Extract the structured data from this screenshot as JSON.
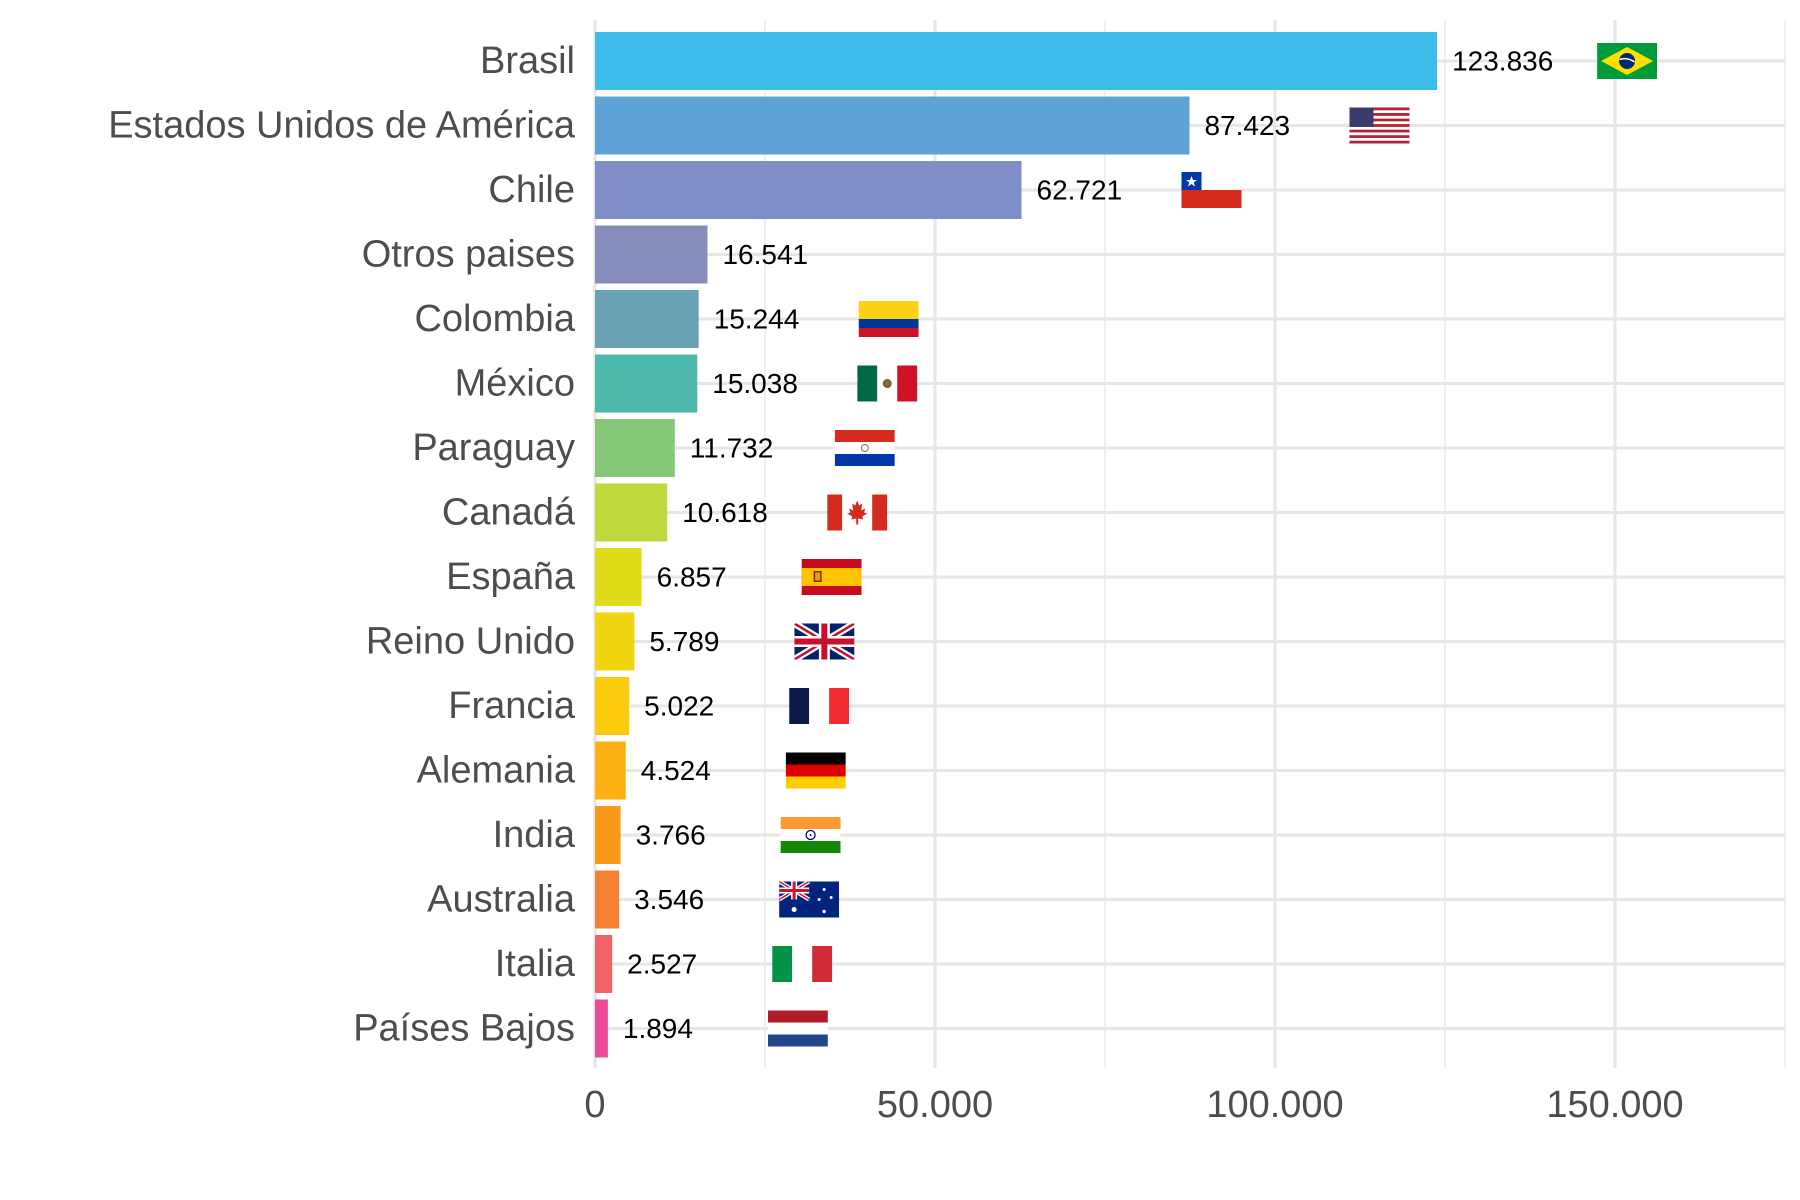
{
  "chart_data": {
    "type": "bar",
    "orientation": "horizontal",
    "title": "",
    "xlabel": "",
    "ylabel": "",
    "xlim": [
      0,
      175000
    ],
    "x_ticks": [
      0,
      50000,
      100000,
      150000
    ],
    "x_tick_labels": [
      "0",
      "50.000",
      "100.000",
      "150.000"
    ],
    "grid": true,
    "categories": [
      "Brasil",
      "Estados Unidos de América",
      "Chile",
      "Otros paises",
      "Colombia",
      "México",
      "Paraguay",
      "Canadá",
      "España",
      "Reino Unido",
      "Francia",
      "Alemania",
      "India",
      "Australia",
      "Italia",
      "Países Bajos"
    ],
    "values": [
      123836,
      87423,
      62721,
      16541,
      15244,
      15038,
      11732,
      10618,
      6857,
      5789,
      5022,
      4524,
      3766,
      3546,
      2527,
      1894
    ],
    "value_labels": [
      "123.836",
      "87.423",
      "62.721",
      "16.541",
      "15.244",
      "15.038",
      "11.732",
      "10.618",
      "6.857",
      "5.789",
      "5.022",
      "4.524",
      "3.766",
      "3.546",
      "2.527",
      "1.894"
    ],
    "bar_colors": [
      "#3dbbe9",
      "#5ea3d8",
      "#7f8dc8",
      "#868cbb",
      "#68a2b4",
      "#4fb8ad",
      "#86c878",
      "#bfd93c",
      "#e0dc1a",
      "#f0d511",
      "#fbcb0b",
      "#fcb113",
      "#f8991a",
      "#f58132",
      "#f16366",
      "#ec4b97"
    ],
    "flags": [
      "brazil-flag",
      "usa-flag",
      "chile-flag",
      "",
      "colombia-flag",
      "mexico-flag",
      "paraguay-flag",
      "canada-flag",
      "spain-flag",
      "uk-flag",
      "france-flag",
      "germany-flag",
      "india-flag",
      "australia-flag",
      "italy-flag",
      "netherlands-flag"
    ]
  }
}
